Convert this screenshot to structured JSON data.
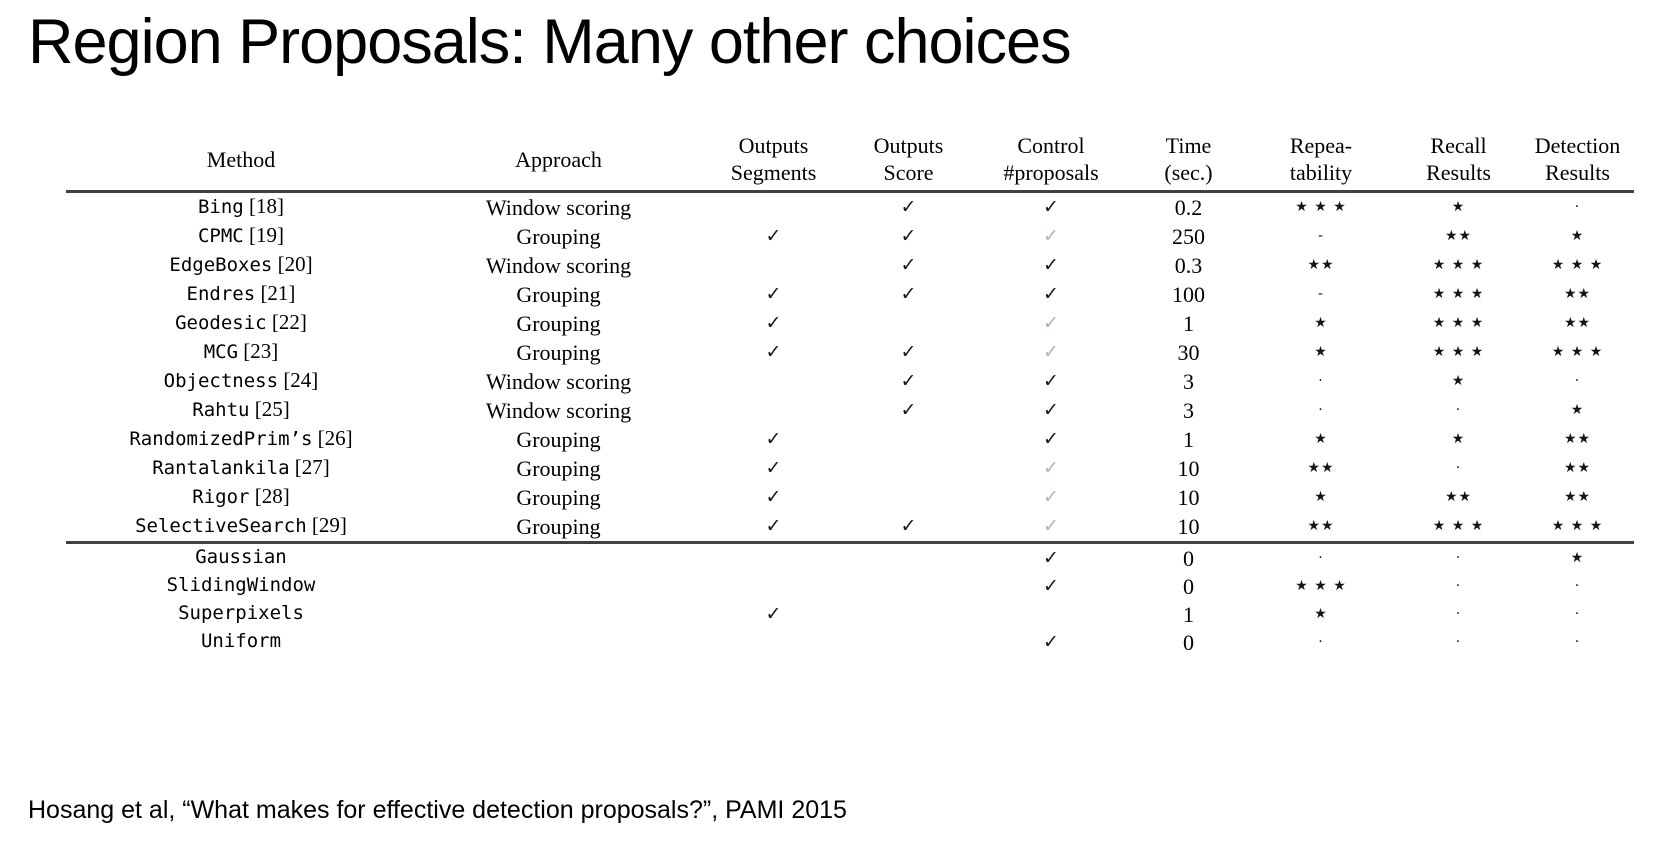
{
  "title": "Region Proposals: Many other choices",
  "citation": "Hosang et al, “What makes for effective detection proposals?”, PAMI 2015",
  "glyphs": {
    "check": "✓",
    "star": "★",
    "dot": "·",
    "dash": "-"
  },
  "colors": {
    "check_black": "#151515",
    "check_gray": "#a7b5c9",
    "rule": "#414141"
  },
  "table": {
    "headers": [
      {
        "line1": "Method",
        "line2": ""
      },
      {
        "line1": "Approach",
        "line2": ""
      },
      {
        "line1": "Outputs",
        "line2": "Segments"
      },
      {
        "line1": "Outputs",
        "line2": "Score"
      },
      {
        "line1": "Control",
        "line2": "#proposals"
      },
      {
        "line1": "Time",
        "line2": "(sec.)"
      },
      {
        "line1": "Repea-",
        "line2": "tability"
      },
      {
        "line1": "Recall",
        "line2": "Results"
      },
      {
        "line1": "Detection",
        "line2": "Results"
      }
    ],
    "rows": [
      {
        "method": "Bing",
        "ref": "[18]",
        "approach": "Window scoring",
        "segments": false,
        "score": true,
        "control": "black",
        "time": "0.2",
        "repeatability": "★ ★ ★",
        "recall": "★",
        "detection": "·",
        "group_end": false
      },
      {
        "method": "CPMC",
        "ref": "[19]",
        "approach": "Grouping",
        "segments": true,
        "score": true,
        "control": "gray",
        "time": "250",
        "repeatability": "-",
        "recall": "★★",
        "detection": "★",
        "group_end": false
      },
      {
        "method": "EdgeBoxes",
        "ref": "[20]",
        "approach": "Window scoring",
        "segments": false,
        "score": true,
        "control": "black",
        "time": "0.3",
        "repeatability": "★★",
        "recall": "★ ★ ★",
        "detection": "★ ★ ★",
        "group_end": false
      },
      {
        "method": "Endres",
        "ref": "[21]",
        "approach": "Grouping",
        "segments": true,
        "score": true,
        "control": "black",
        "time": "100",
        "repeatability": "-",
        "recall": "★ ★ ★",
        "detection": "★★",
        "group_end": false
      },
      {
        "method": "Geodesic",
        "ref": "[22]",
        "approach": "Grouping",
        "segments": true,
        "score": false,
        "control": "gray",
        "time": "1",
        "repeatability": "★",
        "recall": "★ ★ ★",
        "detection": "★★",
        "group_end": false
      },
      {
        "method": "MCG",
        "ref": "[23]",
        "approach": "Grouping",
        "segments": true,
        "score": true,
        "control": "gray",
        "time": "30",
        "repeatability": "★",
        "recall": "★ ★ ★",
        "detection": "★ ★ ★",
        "group_end": false
      },
      {
        "method": "Objectness",
        "ref": "[24]",
        "approach": "Window scoring",
        "segments": false,
        "score": true,
        "control": "black",
        "time": "3",
        "repeatability": "·",
        "recall": "★",
        "detection": "·",
        "group_end": false
      },
      {
        "method": "Rahtu",
        "ref": "[25]",
        "approach": "Window scoring",
        "segments": false,
        "score": true,
        "control": "black",
        "time": "3",
        "repeatability": "·",
        "recall": "·",
        "detection": "★",
        "group_end": false
      },
      {
        "method": "RandomizedPrim’s",
        "ref": "[26]",
        "approach": "Grouping",
        "segments": true,
        "score": false,
        "control": "black",
        "time": "1",
        "repeatability": "★",
        "recall": "★",
        "detection": "★★",
        "group_end": false
      },
      {
        "method": "Rantalankila",
        "ref": "[27]",
        "approach": "Grouping",
        "segments": true,
        "score": false,
        "control": "gray",
        "time": "10",
        "repeatability": "★★",
        "recall": "·",
        "detection": "★★",
        "group_end": false
      },
      {
        "method": "Rigor",
        "ref": "[28]",
        "approach": "Grouping",
        "segments": true,
        "score": false,
        "control": "gray",
        "time": "10",
        "repeatability": "★",
        "recall": "★★",
        "detection": "★★",
        "group_end": false
      },
      {
        "method": "SelectiveSearch",
        "ref": "[29]",
        "approach": "Grouping",
        "segments": true,
        "score": true,
        "control": "gray",
        "time": "10",
        "repeatability": "★★",
        "recall": "★ ★ ★",
        "detection": "★ ★ ★",
        "group_end": true
      },
      {
        "method": "Gaussian",
        "ref": "",
        "approach": "",
        "segments": false,
        "score": false,
        "control": "black",
        "time": "0",
        "repeatability": "·",
        "recall": "·",
        "detection": "★",
        "group_end": false
      },
      {
        "method": "SlidingWindow",
        "ref": "",
        "approach": "",
        "segments": false,
        "score": false,
        "control": "black",
        "time": "0",
        "repeatability": "★ ★ ★",
        "recall": "·",
        "detection": "·",
        "group_end": false
      },
      {
        "method": "Superpixels",
        "ref": "",
        "approach": "",
        "segments": true,
        "score": false,
        "control": "none",
        "time": "1",
        "repeatability": "★",
        "recall": "·",
        "detection": "·",
        "group_end": false
      },
      {
        "method": "Uniform",
        "ref": "",
        "approach": "",
        "segments": false,
        "score": false,
        "control": "black",
        "time": "0",
        "repeatability": "·",
        "recall": "·",
        "detection": "·",
        "group_end": false
      }
    ]
  }
}
